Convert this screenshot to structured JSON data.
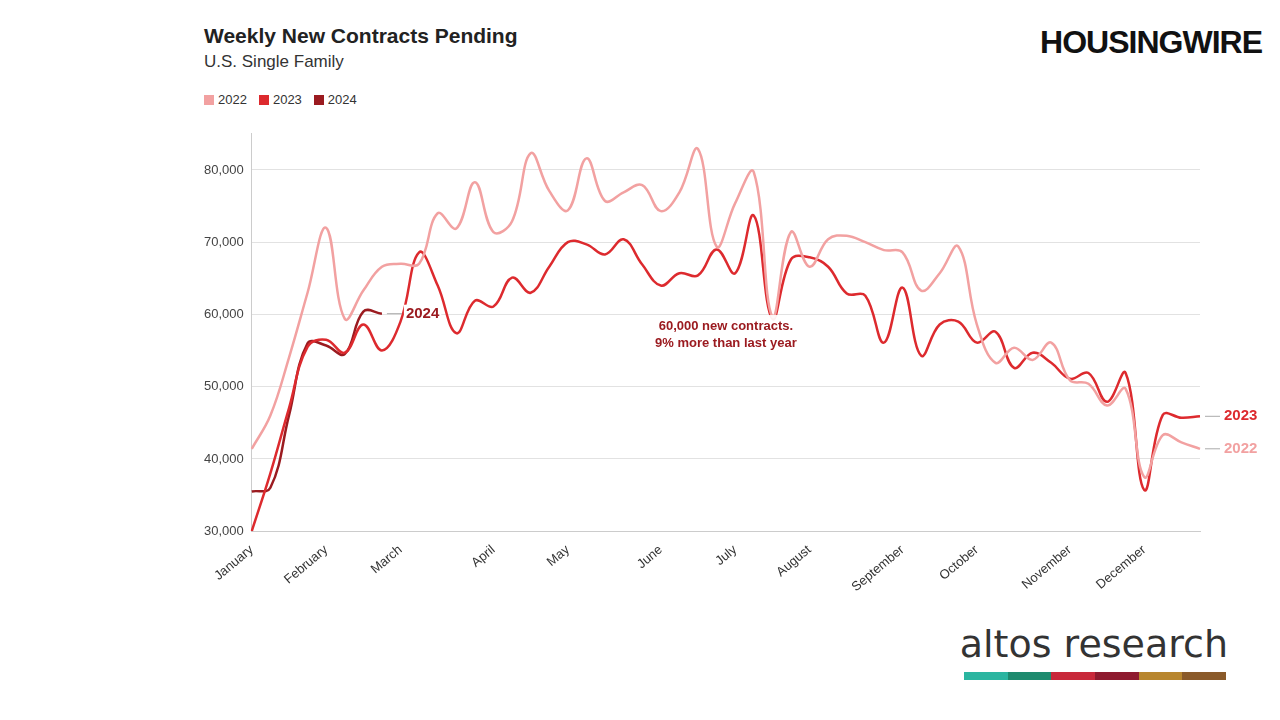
{
  "chart_data": {
    "type": "line",
    "title": "Weekly New Contracts Pending",
    "subtitle": "U.S. Single Family",
    "categories": [
      "January",
      null,
      null,
      null,
      "February",
      null,
      null,
      null,
      "March",
      null,
      null,
      null,
      null,
      "April",
      null,
      null,
      null,
      "May",
      null,
      null,
      null,
      null,
      "June",
      null,
      null,
      null,
      "July",
      null,
      null,
      null,
      "August",
      null,
      null,
      null,
      null,
      "September",
      null,
      null,
      null,
      "October",
      null,
      null,
      null,
      null,
      "November",
      null,
      null,
      null,
      "December",
      null,
      null,
      null
    ],
    "series": [
      {
        "name": "2022",
        "color": "#f2a1a1",
        "values": [
          41400,
          46000,
          54000,
          63000,
          72000,
          59400,
          63300,
          66600,
          67000,
          67000,
          74000,
          71900,
          78300,
          71400,
          72900,
          82300,
          77100,
          74400,
          81600,
          75700,
          76900,
          77900,
          74300,
          76900,
          82900,
          69400,
          75400,
          79700,
          59700,
          71400,
          66600,
          70400,
          70900,
          70000,
          68900,
          68600,
          63300,
          65700,
          69400,
          58600,
          53300,
          55400,
          53700,
          56100,
          50900,
          50400,
          47400,
          49700,
          37500,
          43300,
          42300,
          41400
        ]
      },
      {
        "name": "2023",
        "color": "#dd2a2e",
        "values": [
          30000,
          38000,
          47000,
          55500,
          56500,
          54700,
          58600,
          55000,
          59000,
          68600,
          64000,
          57400,
          61900,
          61100,
          65100,
          63000,
          66600,
          70000,
          69700,
          68300,
          70400,
          66900,
          64000,
          65700,
          65400,
          69000,
          65700,
          73700,
          59400,
          67600,
          67900,
          66600,
          62900,
          62600,
          56100,
          63700,
          54300,
          58600,
          59000,
          56100,
          57600,
          52600,
          54700,
          53300,
          51100,
          51900,
          47900,
          51900,
          35700,
          46100,
          45700,
          45900
        ]
      },
      {
        "name": "2024",
        "color": "#9b1b20",
        "values": [
          35500,
          36000,
          46000,
          56000,
          55700,
          54500,
          60400,
          60100,
          null,
          null,
          null,
          null,
          null,
          null,
          null,
          null,
          null,
          null,
          null,
          null,
          null,
          null,
          null,
          null,
          null,
          null,
          null,
          null,
          null,
          null,
          null,
          null,
          null,
          null,
          null,
          null,
          null,
          null,
          null,
          null,
          null,
          null,
          null,
          null,
          null,
          null,
          null,
          null,
          null,
          null,
          null,
          null
        ]
      }
    ],
    "ylim": [
      30000,
      85000
    ],
    "yticks": [
      {
        "value": 30000,
        "label": "30,000"
      },
      {
        "value": 40000,
        "label": "40,000"
      },
      {
        "value": 50000,
        "label": "50,000"
      },
      {
        "value": 60000,
        "label": "60,000"
      },
      {
        "value": 70000,
        "label": "70,000"
      },
      {
        "value": 80000,
        "label": "80,000"
      }
    ],
    "grid": true,
    "legend": "top-left",
    "annotations": [
      "60,000 new contracts.",
      "9% more than last year"
    ]
  },
  "brand": "HOUSINGWIRE",
  "source": "altos research"
}
